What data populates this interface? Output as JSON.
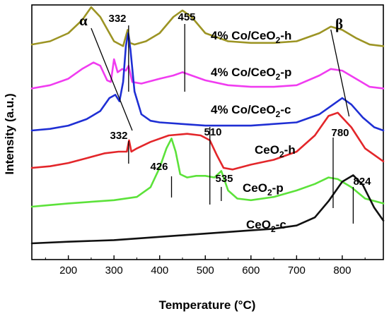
{
  "chart_data": {
    "type": "line",
    "xlabel": "Temperature (°C)",
    "ylabel": "Intensity (a.u.)",
    "xlim": [
      120,
      890
    ],
    "x_ticks": [
      200,
      300,
      400,
      500,
      600,
      700,
      800
    ],
    "colors": {
      "olive": "#9c9424",
      "magenta": "#f03cf0",
      "blue": "#1f2fd4",
      "red": "#e3262a",
      "green": "#5ce23a",
      "black": "#111111"
    },
    "series": [
      {
        "name": "4% Co/CeO2-h",
        "label_main": "4% Co/CeO",
        "label_sub": "2",
        "label_suffix": "-h",
        "color": "#9c9424",
        "label_x_value": 285,
        "label_offset": 0.22,
        "x": [
          120,
          160,
          200,
          230,
          250,
          270,
          300,
          320,
          330,
          335,
          345,
          370,
          400,
          430,
          450,
          470,
          500,
          550,
          600,
          650,
          700,
          750,
          775,
          800,
          830,
          860,
          890
        ],
        "y": [
          0.03,
          0.05,
          0.1,
          0.18,
          0.26,
          0.2,
          0.05,
          0.02,
          0.12,
          0.04,
          0.03,
          0.05,
          0.1,
          0.2,
          0.24,
          0.2,
          0.1,
          0.05,
          0.04,
          0.04,
          0.05,
          0.1,
          0.14,
          0.12,
          0.07,
          0.03,
          0.02
        ]
      },
      {
        "name": "4% Co/CeO2-p",
        "label_main": "4% Co/CeO",
        "label_sub": "2",
        "label_suffix": "-p",
        "color": "#f03cf0",
        "label_x_value": 285,
        "label_offset": 0.22,
        "x": [
          120,
          160,
          200,
          230,
          255,
          270,
          285,
          293,
          300,
          308,
          318,
          326,
          332,
          340,
          360,
          400,
          430,
          450,
          470,
          500,
          550,
          600,
          650,
          700,
          750,
          775,
          800,
          830,
          860,
          890
        ],
        "y": [
          0.02,
          0.04,
          0.08,
          0.14,
          0.18,
          0.16,
          0.07,
          0.06,
          0.2,
          0.12,
          0.14,
          0.13,
          0.16,
          0.06,
          0.05,
          0.08,
          0.1,
          0.12,
          0.1,
          0.07,
          0.04,
          0.03,
          0.03,
          0.04,
          0.1,
          0.14,
          0.13,
          0.08,
          0.03,
          0.02
        ]
      },
      {
        "name": "4% Co/CeO2-c",
        "label_main": "4% Co/CeO",
        "label_sub": "2",
        "label_suffix": "-c",
        "color": "#1f2fd4",
        "label_x_value": 285,
        "label_offset": 0.18,
        "x": [
          120,
          160,
          200,
          240,
          270,
          290,
          303,
          312,
          320,
          326,
          331,
          336,
          345,
          360,
          380,
          400,
          450,
          500,
          600,
          700,
          750,
          780,
          800,
          820,
          845,
          870,
          890
        ],
        "y": [
          0.0,
          0.01,
          0.03,
          0.07,
          0.12,
          0.2,
          0.22,
          0.18,
          0.3,
          0.52,
          0.6,
          0.5,
          0.24,
          0.1,
          0.06,
          0.05,
          0.04,
          0.03,
          0.03,
          0.05,
          0.1,
          0.16,
          0.2,
          0.16,
          0.08,
          0.02,
          0.0
        ]
      },
      {
        "name": "CeO2-h",
        "label_main": "CeO",
        "label_sub": "2",
        "label_suffix": "-h",
        "color": "#e3262a",
        "label_x_value": 475,
        "label_offset": 0.14,
        "x": [
          120,
          160,
          200,
          240,
          280,
          310,
          328,
          333,
          338,
          350,
          380,
          420,
          460,
          490,
          510,
          525,
          540,
          560,
          600,
          650,
          700,
          740,
          770,
          790,
          820,
          850,
          890
        ],
        "y": [
          0.0,
          0.01,
          0.03,
          0.06,
          0.09,
          0.1,
          0.1,
          0.17,
          0.1,
          0.12,
          0.16,
          0.2,
          0.21,
          0.2,
          0.17,
          0.08,
          0.0,
          -0.01,
          0.02,
          0.05,
          0.1,
          0.2,
          0.32,
          0.34,
          0.25,
          0.12,
          0.04
        ]
      },
      {
        "name": "CeO2-p",
        "label_main": "CeO",
        "label_sub": "2",
        "label_suffix": "-p",
        "color": "#5ce23a",
        "label_x_value": 520,
        "label_offset": 0.04,
        "x": [
          120,
          160,
          200,
          250,
          300,
          350,
          380,
          400,
          415,
          426,
          435,
          445,
          460,
          480,
          500,
          520,
          535,
          550,
          570,
          600,
          650,
          700,
          740,
          770,
          790,
          820,
          850,
          890
        ],
        "y": [
          0.0,
          0.01,
          0.02,
          0.03,
          0.04,
          0.06,
          0.12,
          0.24,
          0.36,
          0.42,
          0.34,
          0.2,
          0.18,
          0.19,
          0.19,
          0.18,
          0.22,
          0.1,
          0.05,
          0.04,
          0.06,
          0.1,
          0.14,
          0.18,
          0.17,
          0.12,
          0.05,
          0.02
        ]
      },
      {
        "name": "CeO2-c",
        "label_main": "CeO",
        "label_sub": "2",
        "label_suffix": "-c",
        "color": "#111111",
        "label_x_value": 560,
        "label_offset": 0.1,
        "x": [
          120,
          200,
          300,
          400,
          500,
          600,
          650,
          700,
          740,
          770,
          800,
          824,
          845,
          870,
          890
        ],
        "y": [
          0.0,
          0.01,
          0.02,
          0.04,
          0.06,
          0.08,
          0.09,
          0.11,
          0.16,
          0.26,
          0.38,
          0.42,
          0.36,
          0.22,
          0.14
        ]
      }
    ],
    "annotations": [
      {
        "text": "α",
        "kind": "greek",
        "anchor_x": 150
      },
      {
        "text": "β",
        "kind": "greek",
        "anchor_x": 800
      },
      {
        "text": "332",
        "anchor_x": 332
      },
      {
        "text": "455",
        "anchor_x": 455
      },
      {
        "text": "332",
        "anchor_x": 332
      },
      {
        "text": "510",
        "anchor_x": 510
      },
      {
        "text": "780",
        "anchor_x": 780
      },
      {
        "text": "426",
        "anchor_x": 426
      },
      {
        "text": "535",
        "anchor_x": 535
      },
      {
        "text": "824",
        "anchor_x": 824
      }
    ]
  }
}
